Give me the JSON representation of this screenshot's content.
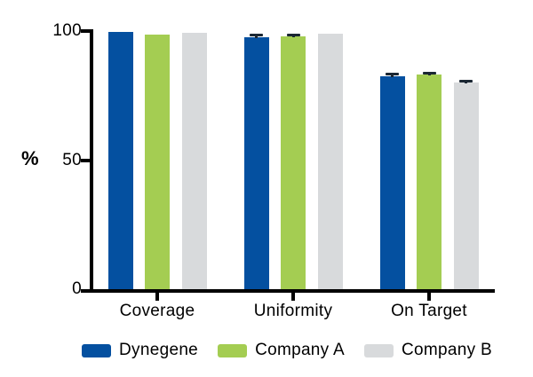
{
  "chart_data": {
    "type": "bar",
    "title": "",
    "ylabel": "%",
    "ylim": [
      0,
      100
    ],
    "yticks": [
      0,
      50,
      100
    ],
    "grid": false,
    "legend_position": "bottom",
    "categories": [
      "Coverage",
      "Uniformity",
      "On Target"
    ],
    "series": [
      {
        "name": "Dynegene",
        "color": "#0450A0",
        "values": [
          100.0,
          97.8,
          82.8
        ],
        "errors": [
          0,
          1.0,
          1.0
        ]
      },
      {
        "name": "Company A",
        "color": "#A4CD52",
        "values": [
          99.0,
          98.3,
          83.5
        ],
        "errors": [
          0,
          0.7,
          0.8
        ]
      },
      {
        "name": "Company B",
        "color": "#D8DADC",
        "values": [
          99.5,
          99.2,
          80.3
        ],
        "errors": [
          0,
          0,
          0.6
        ]
      }
    ],
    "axis_color": "#000000",
    "error_bar_color": "#1b2733",
    "background_color": "#ffffff"
  }
}
